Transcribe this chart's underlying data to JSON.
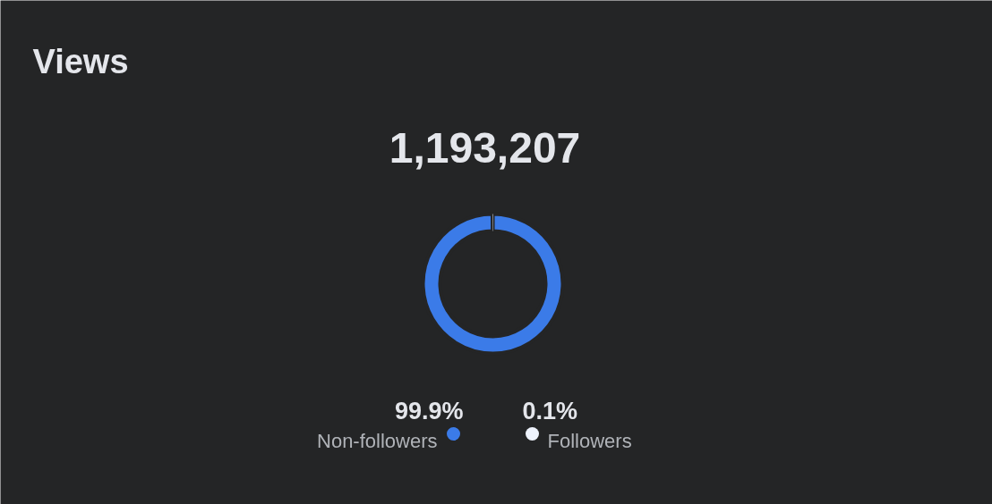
{
  "chart_data": {
    "type": "donut",
    "title": "Views",
    "subtitle": "1,193,207",
    "categories": [
      "Non-followers",
      "Followers"
    ],
    "values": [
      99.9,
      0.1
    ],
    "colors": [
      "#3b7be8",
      "#eef3fc"
    ],
    "value_labels": [
      "99.9%",
      "0.1%"
    ],
    "legend": "bottom"
  }
}
